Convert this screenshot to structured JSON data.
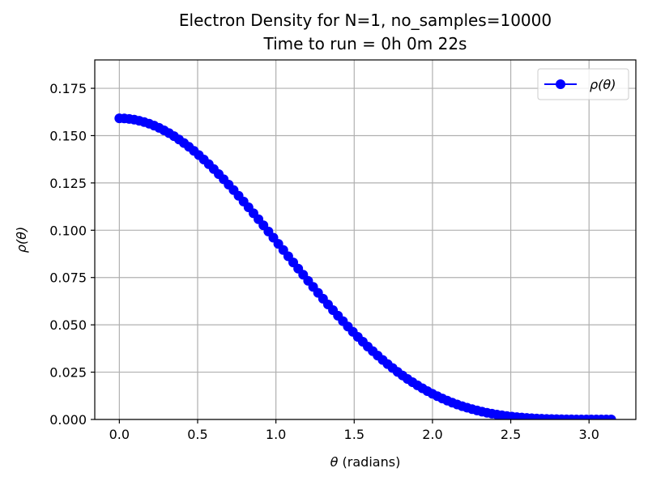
{
  "chart_data": {
    "type": "line",
    "title_line1": "Electron Density for N=1, no_samples=10000",
    "title_line2": "Time to run = 0h 0m 22s",
    "xlabel_symbol": "θ",
    "xlabel_rest": " (radians)",
    "ylabel": "ρ(θ)",
    "xlim": [
      -0.157,
      3.299
    ],
    "ylim": [
      0,
      0.19
    ],
    "xticks": [
      0.0,
      0.5,
      1.0,
      1.5,
      2.0,
      2.5,
      3.0
    ],
    "xtick_labels": [
      "0.0",
      "0.5",
      "1.0",
      "1.5",
      "2.0",
      "2.5",
      "3.0"
    ],
    "yticks": [
      0.0,
      0.025,
      0.05,
      0.075,
      0.1,
      0.125,
      0.15,
      0.175
    ],
    "ytick_labels": [
      "0.000",
      "0.025",
      "0.050",
      "0.075",
      "0.100",
      "0.125",
      "0.150",
      "0.175"
    ],
    "grid": true,
    "legend_position": "top-right",
    "series": [
      {
        "name": "ρ(θ)",
        "color": "#0000ff",
        "marker": "circle",
        "curve": "(1 + cos θ)^2 / (8π)",
        "x_range": [
          0,
          3.14159
        ],
        "num_points": 100
      }
    ]
  }
}
